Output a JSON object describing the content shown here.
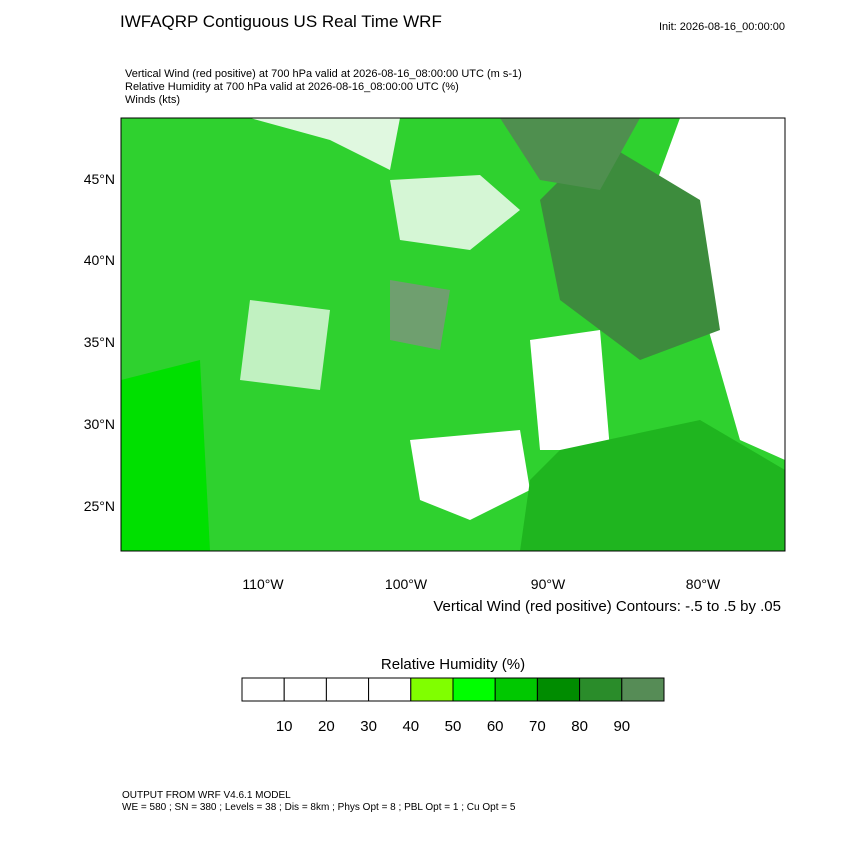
{
  "header": {
    "title": "IWFAQRP Contiguous US Real Time WRF",
    "init": "Init: 2026-08-16_00:00:00"
  },
  "fields": [
    "Vertical Wind (red positive) at 700 hPa valid at 2026-08-16_08:00:00 UTC   (m s-1)",
    "Relative Humidity at 700 hPa valid at 2026-08-16_08:00:00 UTC   (%)",
    "Winds   (kts)"
  ],
  "map": {
    "lat_labels": [
      "45°N",
      "40°N",
      "35°N",
      "30°N",
      "25°N"
    ],
    "lon_labels": [
      "110°W",
      "100°W",
      "90°W",
      "80°W"
    ],
    "contour_note": "Vertical Wind (red positive) Contours: -.5 to .5 by .05"
  },
  "colorbar": {
    "title": "Relative Humidity  (%)",
    "labels": [
      "10",
      "20",
      "30",
      "40",
      "50",
      "60",
      "70",
      "80",
      "90"
    ],
    "colors": [
      "#ffffff",
      "#ffffff",
      "#ffffff",
      "#ffffff",
      "#80ff00",
      "#00ff00",
      "#00c800",
      "#008c00",
      "#2a8c2a",
      "#568c56"
    ]
  },
  "footer": {
    "line1": "OUTPUT FROM WRF V4.6.1 MODEL",
    "line2": "WE = 580 ; SN = 380 ; Levels = 38 ; Dis = 8km ; Phys Opt = 8 ; PBL Opt = 1 ; Cu Opt = 5"
  }
}
